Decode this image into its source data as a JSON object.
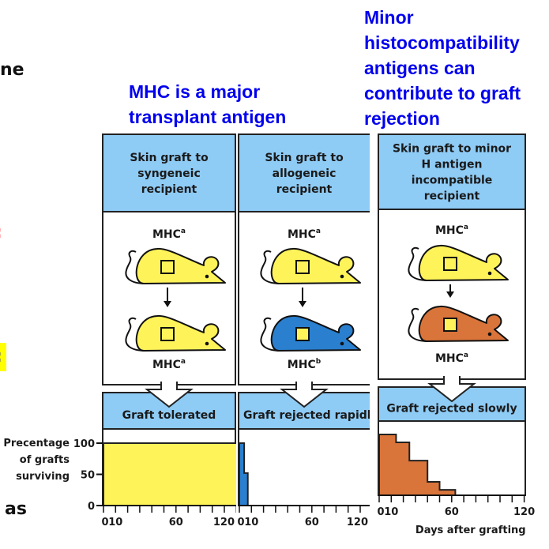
{
  "slide_fragments": {
    "left_top": "ne",
    "left_red": ":",
    "left_highlight": ":",
    "left_bottom": "as"
  },
  "titles": {
    "major": [
      "MHC is a major",
      "transplant antigen"
    ],
    "minor": [
      "Minor",
      "histocompatibility",
      "antigens can",
      "contribute to graft",
      "rejection"
    ]
  },
  "panels": [
    {
      "header": [
        "Skin graft to",
        "syngeneic",
        "recipient"
      ],
      "donor": {
        "label": "MHC",
        "sup": "a",
        "color": "#fff35a"
      },
      "recipient": {
        "label": "MHC",
        "sup": "a",
        "color": "#fff35a"
      },
      "graft_patch_color": "#fff35a",
      "outcome": "Graft tolerated"
    },
    {
      "header": [
        "Skin graft to",
        "allogeneic",
        "recipient"
      ],
      "donor": {
        "label": "MHC",
        "sup": "a",
        "color": "#fff35a"
      },
      "recipient": {
        "label": "MHC",
        "sup": "b",
        "color": "#2a7fcf"
      },
      "graft_patch_color": "#fff35a",
      "outcome": "Graft rejected rapidly"
    },
    {
      "header": [
        "Skin graft to minor",
        "H antigen",
        "incompatible",
        "recipient"
      ],
      "donor": {
        "label": "MHC",
        "sup": "a",
        "color": "#fff35a"
      },
      "recipient": {
        "label": "MHC",
        "sup": "a",
        "color": "#d9743a"
      },
      "graft_patch_color": "#fff35a",
      "outcome": "Graft rejected slowly"
    }
  ],
  "colors": {
    "header_fill": "#8ecbf5",
    "title_blue": "#0000ee",
    "red_fragment": "#ff2020",
    "highlight": "#ffff00"
  },
  "chart_data": [
    {
      "type": "area",
      "ylabel": "Precentage of grafts surviving",
      "ylim": [
        0,
        100
      ],
      "yticks": [
        0,
        50,
        100
      ],
      "xlim": [
        0,
        120
      ],
      "xticks": [
        "0",
        "10",
        "60",
        "120"
      ],
      "step": true,
      "color": "#fff35a",
      "series": {
        "x": [
          0,
          120
        ],
        "y": [
          100,
          100
        ]
      }
    },
    {
      "type": "area",
      "ylim": [
        0,
        100
      ],
      "xlim": [
        0,
        120
      ],
      "xticks": [
        "0",
        "10",
        "60",
        "120"
      ],
      "step": true,
      "color": "#2a7fcf",
      "series": {
        "x": [
          0,
          4,
          7
        ],
        "y": [
          100,
          52,
          0
        ]
      }
    },
    {
      "type": "area",
      "xlabel": "Days after grafting",
      "ylim": [
        0,
        100
      ],
      "xlim": [
        0,
        120
      ],
      "xticks": [
        "0",
        "10",
        "60",
        "120"
      ],
      "step": true,
      "color": "#d9743a",
      "series": {
        "x": [
          0,
          14,
          25,
          40,
          50,
          63
        ],
        "y": [
          100,
          87,
          57,
          22,
          9,
          0
        ]
      }
    }
  ]
}
